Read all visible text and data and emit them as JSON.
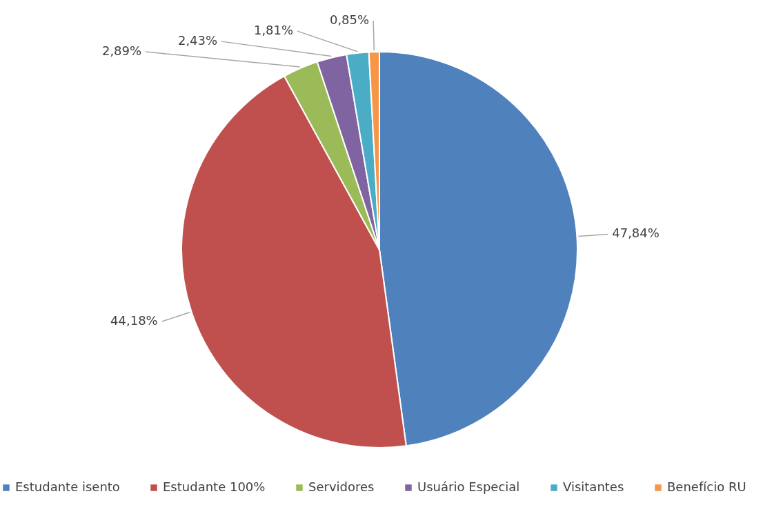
{
  "chart_data": {
    "type": "pie",
    "categories": [
      "Estudante isento",
      "Estudante 100%",
      "Servidores",
      "Usuário Especial",
      "Visitantes",
      "Benefício RU"
    ],
    "values": [
      47.84,
      44.18,
      2.89,
      2.43,
      1.81,
      0.85
    ],
    "colors": [
      "#4f81bd",
      "#c0504d",
      "#9bbb59",
      "#8064a2",
      "#4bacc6",
      "#f79646"
    ],
    "value_labels": [
      "47,84%",
      "44,18%",
      "2,89%",
      "2,43%",
      "1,81%",
      "0,85%"
    ],
    "legend": "bottom"
  }
}
